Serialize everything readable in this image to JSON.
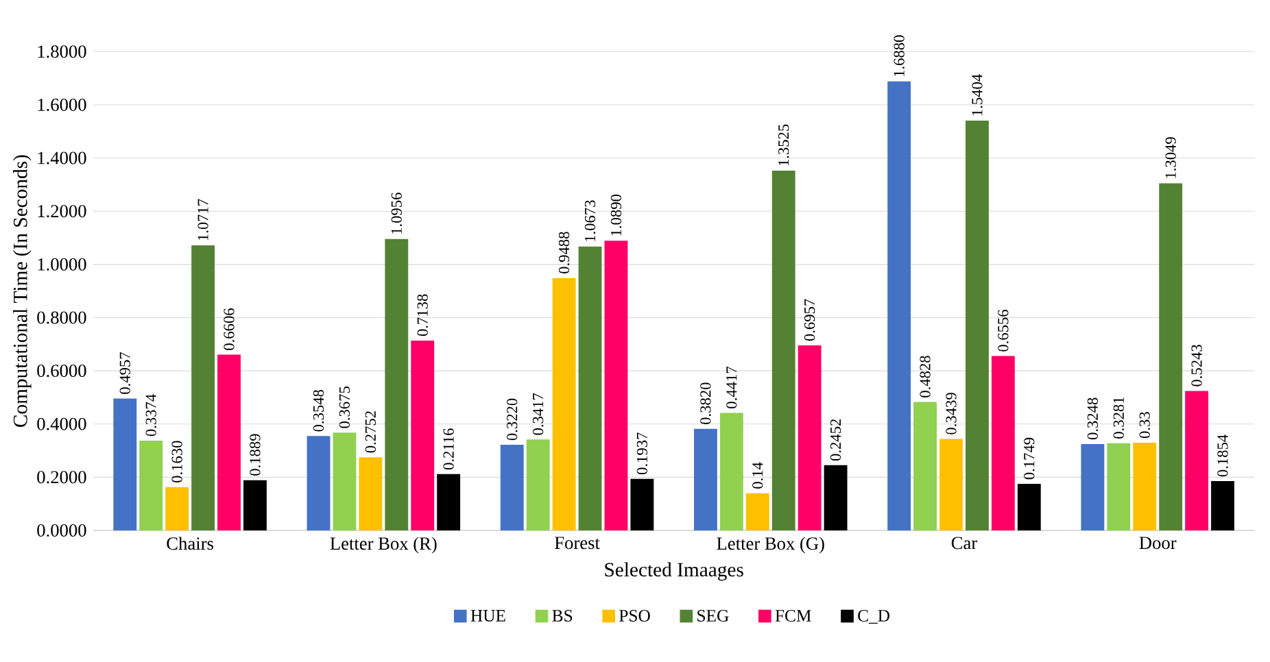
{
  "chart_data": {
    "type": "bar",
    "xlabel": "Selected Imaages",
    "ylabel": "Computational Time (In Seconds)",
    "categories": [
      "Chairs",
      "Letter Box (R)",
      "Forest",
      "Letter Box (G)",
      "Car",
      "Door"
    ],
    "series": [
      {
        "name": "HUE",
        "color": "#4472c4",
        "values": [
          0.4957,
          0.3548,
          0.322,
          0.382,
          1.688,
          0.3248
        ],
        "value_labels": [
          "0.4957",
          "0.3548",
          "0.3220",
          "0.3820",
          "1.6880",
          "0.3248"
        ]
      },
      {
        "name": "BS",
        "color": "#92d050",
        "values": [
          0.3374,
          0.3675,
          0.3417,
          0.4417,
          0.4828,
          0.3281
        ],
        "value_labels": [
          "0.3374",
          "0.3675",
          "0.3417",
          "0.4417",
          "0.4828",
          "0.3281"
        ]
      },
      {
        "name": "PSO",
        "color": "#ffc000",
        "values": [
          0.163,
          0.2752,
          0.9488,
          0.14,
          0.3439,
          0.33
        ],
        "value_labels": [
          "0.1630",
          "0.2752",
          "0.9488",
          "0.14",
          "0.3439",
          "0.33"
        ]
      },
      {
        "name": "SEG",
        "color": "#548235",
        "values": [
          1.0717,
          1.0956,
          1.0673,
          1.3525,
          1.5404,
          1.3049
        ],
        "value_labels": [
          "1.0717",
          "1.0956",
          "1.0673",
          "1.3525",
          "1.5404",
          "1.3049"
        ]
      },
      {
        "name": "FCM",
        "color": "#ff0066",
        "values": [
          0.6606,
          0.7138,
          1.089,
          0.6957,
          0.6556,
          0.5243
        ],
        "value_labels": [
          "0.6606",
          "0.7138",
          "1.0890",
          "0.6957",
          "0.6556",
          "0.5243"
        ]
      },
      {
        "name": "C_D",
        "color": "#000000",
        "values": [
          0.1889,
          0.2116,
          0.1937,
          0.2452,
          0.1749,
          0.1854
        ],
        "value_labels": [
          "0.1889",
          "0.2116",
          "0.1937",
          "0.2452",
          "0.1749",
          "0.1854"
        ]
      }
    ],
    "ylim": [
      0,
      1.8
    ],
    "yticks": [
      {
        "value": 0,
        "label": "0.0000"
      },
      {
        "value": 0.2,
        "label": "0.2000"
      },
      {
        "value": 0.4,
        "label": "0.4000"
      },
      {
        "value": 0.6,
        "label": "0.6000"
      },
      {
        "value": 0.8,
        "label": "0.8000"
      },
      {
        "value": 1.0,
        "label": "1.0000"
      },
      {
        "value": 1.2,
        "label": "1.2000"
      },
      {
        "value": 1.4,
        "label": "1.4000"
      },
      {
        "value": 1.6,
        "label": "1.6000"
      },
      {
        "value": 1.8,
        "label": "1.8000"
      }
    ],
    "grid": "y",
    "legend": "bottom"
  }
}
